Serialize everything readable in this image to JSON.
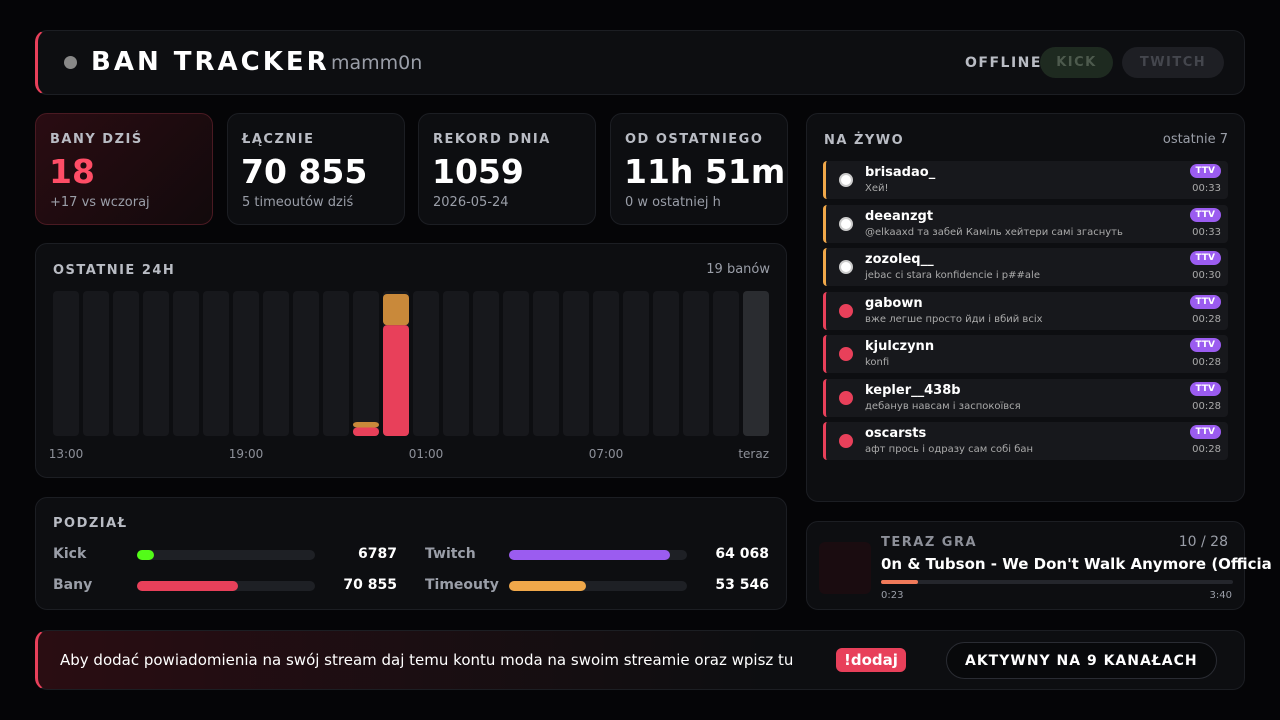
{
  "header": {
    "title": "BAN TRACKER",
    "user": "mamm0n",
    "status": "OFFLINE",
    "buttons": [
      "KICK",
      "TWITCH"
    ]
  },
  "stats": [
    {
      "label": "BANY DZIŚ",
      "value": "18",
      "sub": "+17 vs wczoraj"
    },
    {
      "label": "ŁĄCZNIE",
      "value": "70 855",
      "sub": "5 timeoutów dziś"
    },
    {
      "label": "REKORD DNIA",
      "value": "1059",
      "sub": "2026-05-24"
    },
    {
      "label": "OD OSTATNIEGO",
      "value": "11h 51m",
      "sub": "0 w ostatniej h"
    }
  ],
  "activity": {
    "title": "OSTATNIE 24H",
    "total": "19 banów",
    "categories": [
      "13:00",
      null,
      null,
      null,
      null,
      null,
      "19:00",
      null,
      null,
      null,
      null,
      null,
      "01:00",
      null,
      null,
      null,
      null,
      null,
      "07:00",
      null,
      null,
      null,
      null,
      "teraz"
    ],
    "series": [
      {
        "color": "#e8405a",
        "values": [
          0,
          0,
          0,
          0,
          0,
          0,
          0,
          0,
          0,
          0,
          1,
          13,
          0,
          0,
          0,
          0,
          0,
          0,
          0,
          0,
          0,
          0,
          0,
          0
        ]
      },
      {
        "color": "#c9893a",
        "values": [
          0,
          0,
          0,
          0,
          0,
          0,
          0,
          0,
          0,
          0,
          1,
          4,
          0,
          0,
          0,
          0,
          0,
          0,
          0,
          0,
          0,
          0,
          0,
          0
        ]
      }
    ]
  },
  "split": {
    "title": "PODZIAŁ",
    "rows": [
      [
        {
          "label": "Kick",
          "value": 6787,
          "color": "#53fc18"
        },
        {
          "label": "Twitch",
          "value": 64068,
          "value_label": "64 068",
          "color": "#9b5cf0"
        }
      ],
      [
        {
          "label": "Bany",
          "value": 70855,
          "value_label": "70 855",
          "color": "#e8405a"
        },
        {
          "label": "Timeouty",
          "value": 53546,
          "value_label": "53 546",
          "color": "#f0a84a"
        }
      ]
    ]
  },
  "live": {
    "title": "NA ŻYWO",
    "subtitle": "ostatnie 7",
    "items": [
      {
        "user": "brisadao_",
        "message": "Хей!",
        "badge": "TTV",
        "time": "00:33",
        "kind": "timeout"
      },
      {
        "user": "deeanzgt",
        "message": "@elkaaxd та забей Каміль хейтери самі згаснуть",
        "badge": "TTV",
        "time": "00:33",
        "kind": "timeout"
      },
      {
        "user": "zozoleq__",
        "message": "jebac ci stara konfidencie i p##ale",
        "badge": "TTV",
        "time": "00:30",
        "kind": "timeout"
      },
      {
        "user": "gabown",
        "message": "вже легше просто йди і вбий всіх",
        "badge": "TTV",
        "time": "00:28",
        "kind": "ban"
      },
      {
        "user": "kjulczynn",
        "message": "konfi",
        "badge": "TTV",
        "time": "00:28",
        "kind": "ban"
      },
      {
        "user": "kepler__438b",
        "message": "дебанув навсам і заспокоївся",
        "badge": "TTV",
        "time": "00:28",
        "kind": "ban"
      },
      {
        "user": "oscarsts",
        "message": "афт прось і одразу сам собі бан",
        "badge": "TTV",
        "time": "00:28",
        "kind": "ban"
      }
    ]
  },
  "now_playing": {
    "title": "TERAZ GRA",
    "position": "10 / 28",
    "song": "0n & Tubson - We Don't Walk Anymore (Officia",
    "elapsed": "0:23",
    "duration": "3:40"
  },
  "footer": {
    "message": "Aby dodać powiadomienia na swój stream daj temu kontu moda na swoim streamie oraz wpisz tu",
    "command": "!dodaj",
    "status": "AKTYWNY NA 9 KANAŁACH"
  }
}
